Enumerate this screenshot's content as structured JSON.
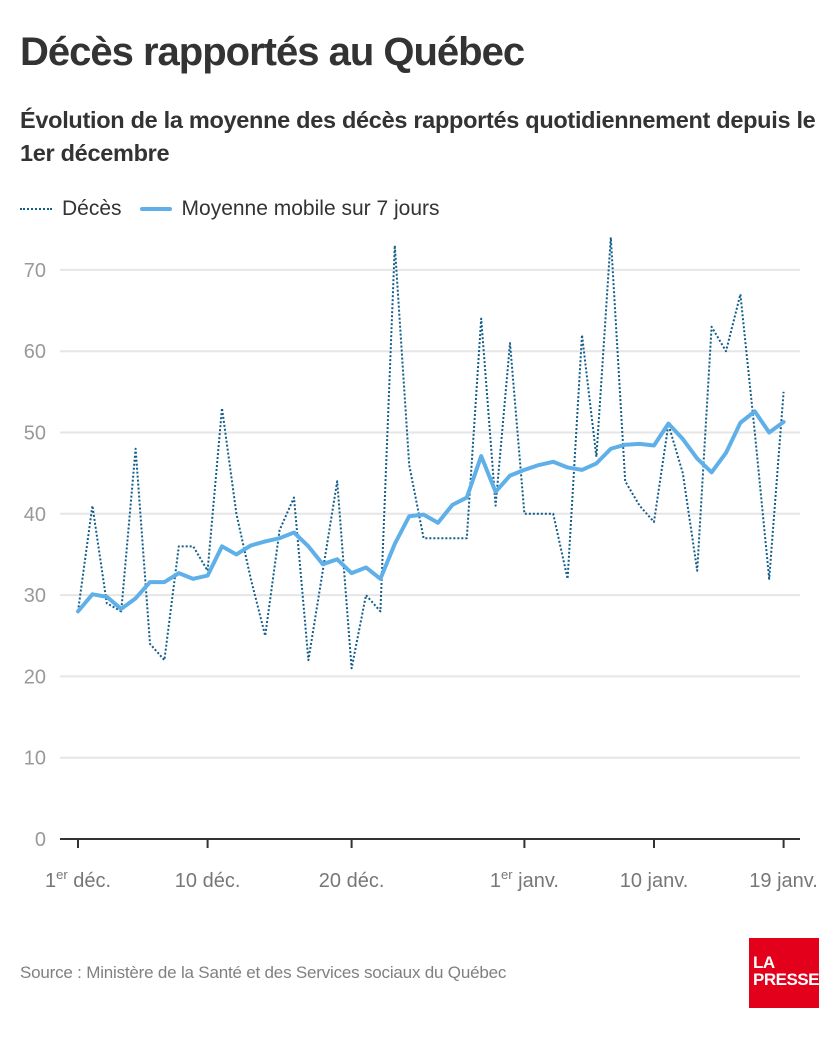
{
  "header": {
    "title": "Décès rapportés au Québec",
    "subtitle": "Évolution de la moyenne des décès rapportés quotidiennement depuis le 1er décembre"
  },
  "legend": {
    "items": [
      {
        "label": "Décès",
        "style": "dotted"
      },
      {
        "label": "Moyenne mobile sur 7 jours",
        "style": "solid"
      }
    ]
  },
  "footer": {
    "source": "Source : Ministère de la Santé et des Services sociaux du Québec",
    "logo_line1": "LA",
    "logo_line2": "PRESSE"
  },
  "colors": {
    "deaths": "#135d8a",
    "average": "#5fb0e8",
    "grid": "#e6e6e6",
    "axis": "#333333",
    "tick_label": "#999999",
    "logo": "#e2001a"
  },
  "chart_data": {
    "type": "line",
    "title": "Décès rapportés au Québec",
    "subtitle": "Évolution de la moyenne des décès rapportés quotidiennement depuis le 1er décembre",
    "xlabel": "",
    "ylabel": "",
    "x_start": "1er déc.",
    "x_days": [
      1,
      2,
      3,
      4,
      5,
      6,
      7,
      8,
      9,
      10,
      11,
      12,
      13,
      14,
      15,
      16,
      17,
      18,
      19,
      20,
      21,
      22,
      23,
      24,
      25,
      26,
      27,
      28,
      29,
      30,
      31,
      32,
      33,
      34,
      35,
      36,
      37,
      38,
      39,
      40,
      41,
      42,
      43,
      44,
      45,
      46,
      47,
      48,
      49,
      50
    ],
    "xlim": [
      1,
      51.3
    ],
    "ylim": [
      0,
      70
    ],
    "yticks": [
      0,
      10,
      20,
      30,
      40,
      50,
      60,
      70
    ],
    "xticks": [
      {
        "day": 1,
        "label": "1",
        "sup": "er",
        "suffix": " déc."
      },
      {
        "day": 10,
        "label": "10 déc.",
        "sup": "",
        "suffix": ""
      },
      {
        "day": 20,
        "label": "20 déc.",
        "sup": "",
        "suffix": ""
      },
      {
        "day": 32,
        "label": "1",
        "sup": "er",
        "suffix": " janv."
      },
      {
        "day": 41,
        "label": "10 janv.",
        "sup": "",
        "suffix": ""
      },
      {
        "day": 50,
        "label": "19 janv.",
        "sup": "",
        "suffix": ""
      }
    ],
    "grid": true,
    "legend_position": "top-left",
    "series": [
      {
        "name": "Décès",
        "style": "dotted",
        "values": [
          28,
          41,
          29,
          28,
          48,
          24,
          22,
          36,
          36,
          33,
          53,
          40,
          32,
          25,
          38,
          42,
          22,
          33,
          44,
          21,
          30,
          28,
          73,
          46,
          37,
          37,
          37,
          37,
          64,
          41,
          61,
          40,
          40,
          40,
          32,
          62,
          47,
          74,
          44,
          41,
          39,
          51,
          45,
          33,
          63,
          60,
          67,
          50,
          32,
          55
        ]
      },
      {
        "name": "Moyenne mobile sur 7 jours",
        "style": "solid",
        "values": [
          28,
          30.1,
          29.8,
          28.3,
          29.6,
          31.6,
          31.6,
          32.7,
          32,
          32.4,
          36,
          35,
          36.1,
          36.6,
          37,
          37.7,
          36,
          33.8,
          34.4,
          32.7,
          33.4,
          32,
          36.3,
          39.7,
          39.9,
          38.9,
          41.1,
          42,
          47.1,
          42.7,
          44.7,
          45.4,
          46,
          46.4,
          45.7,
          45.4,
          46.2,
          48,
          48.5,
          48.6,
          48.4,
          51.1,
          49.2,
          46.8,
          45.1,
          47.5,
          51.2,
          52.6,
          50,
          51.3
        ]
      }
    ]
  }
}
